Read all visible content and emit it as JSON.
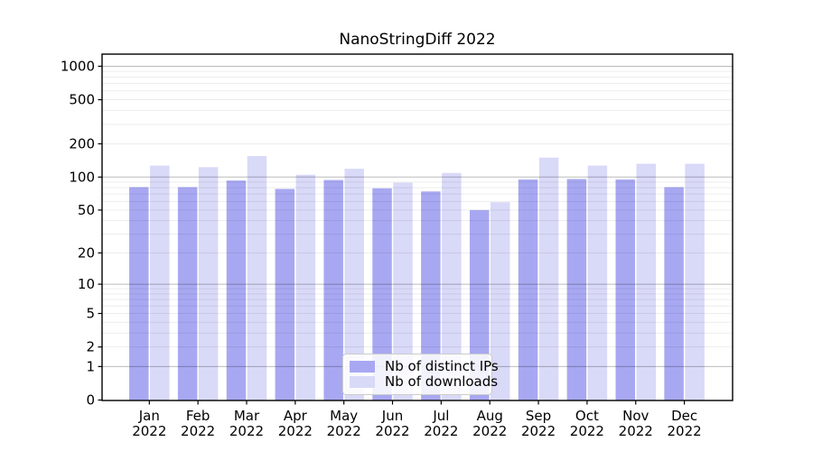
{
  "chart_data": {
    "type": "bar",
    "title": "NanoStringDiff 2022",
    "categories": [
      "Jan",
      "Feb",
      "Mar",
      "Apr",
      "May",
      "Jun",
      "Jul",
      "Aug",
      "Sep",
      "Oct",
      "Nov",
      "Dec"
    ],
    "year_label": "2022",
    "series": [
      {
        "name": "Nb of distinct IPs",
        "color": "#a8a8f2",
        "values": [
          81,
          81,
          93,
          78,
          94,
          79,
          74,
          50,
          95,
          96,
          95,
          81
        ]
      },
      {
        "name": "Nb of downloads",
        "color": "#d9d9f8",
        "values": [
          127,
          123,
          155,
          105,
          119,
          89,
          109,
          59,
          150,
          127,
          132,
          132
        ]
      }
    ],
    "y_ticks": [
      0,
      1,
      2,
      5,
      10,
      20,
      50,
      100,
      200,
      500,
      1000
    ],
    "scale": "log1p",
    "ylim": [
      0,
      1286
    ],
    "grid": true,
    "legend_position": "bottom-center",
    "axis_color": "#000000",
    "major_grid_color": "#b5b5b5",
    "minor_grid_color": "#ececec"
  }
}
